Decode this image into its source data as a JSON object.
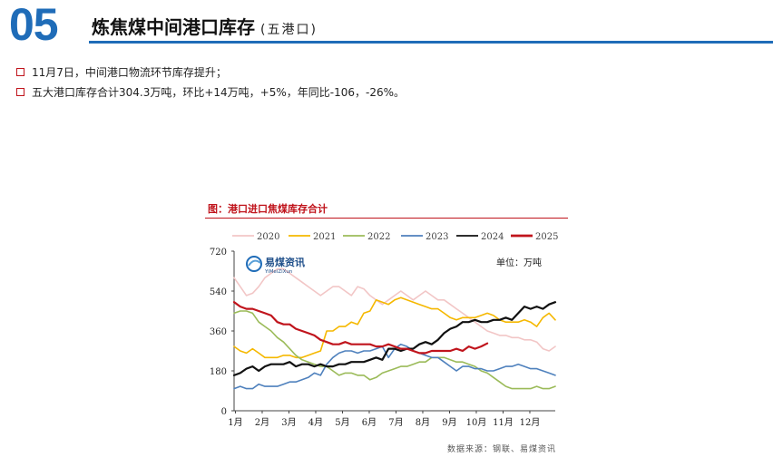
{
  "section": {
    "number": "05"
  },
  "header": {
    "title": "炼焦煤中间港口库存",
    "subtitle": "(五港口)"
  },
  "bullets": [
    {
      "text": "11月7日，中间港口物流环节库存提升；"
    },
    {
      "text": "五大港口库存合计304.3万吨，环比+14万吨，+5%，年同比-106，-26%。"
    }
  ],
  "chart_title": "图：港口进口焦煤库存合计",
  "logo": {
    "name": "易煤资讯",
    "en": "YiMeiZiXun"
  },
  "unit_label": "单位：万吨",
  "source": "数据来源：钢联、易煤资讯",
  "chart_data": {
    "type": "line",
    "ylim": [
      0,
      720
    ],
    "yticks": [
      0,
      180,
      360,
      540,
      720
    ],
    "x_tick_labels": [
      "1月",
      "2月",
      "3月",
      "4月",
      "5月",
      "6月",
      "7月",
      "8月",
      "9月",
      "10月",
      "11月",
      "12月"
    ],
    "x_range_weeks": [
      1,
      53
    ],
    "series": [
      {
        "name": "2020",
        "color": "#f2c6c6",
        "values": [
          600,
          560,
          520,
          530,
          560,
          600,
          620,
          640,
          640,
          620,
          600,
          580,
          560,
          540,
          520,
          540,
          560,
          560,
          540,
          520,
          560,
          550,
          520,
          500,
          480,
          500,
          520,
          540,
          520,
          500,
          520,
          540,
          520,
          500,
          500,
          480,
          460,
          440,
          420,
          400,
          380,
          360,
          350,
          340,
          340,
          330,
          330,
          320,
          320,
          310,
          280,
          270,
          290
        ]
      },
      {
        "name": "2021",
        "color": "#f5b800",
        "values": [
          290,
          270,
          260,
          280,
          260,
          240,
          240,
          240,
          250,
          250,
          240,
          240,
          250,
          260,
          270,
          360,
          360,
          380,
          380,
          400,
          390,
          440,
          450,
          500,
          490,
          480,
          500,
          510,
          500,
          490,
          480,
          470,
          460,
          460,
          440,
          420,
          410,
          420,
          420,
          420,
          430,
          440,
          430,
          410,
          400,
          400,
          400,
          410,
          400,
          380,
          420,
          440,
          410
        ]
      },
      {
        "name": "2022",
        "color": "#9bbb59",
        "values": [
          440,
          450,
          450,
          440,
          400,
          380,
          360,
          330,
          310,
          280,
          250,
          230,
          220,
          210,
          200,
          200,
          180,
          160,
          170,
          170,
          160,
          160,
          140,
          150,
          170,
          180,
          190,
          200,
          200,
          210,
          220,
          220,
          240,
          240,
          240,
          230,
          220,
          220,
          210,
          200,
          180,
          170,
          150,
          130,
          110,
          100,
          100,
          100,
          100,
          110,
          100,
          100,
          110
        ]
      },
      {
        "name": "2023",
        "color": "#4f81bd",
        "values": [
          100,
          110,
          100,
          100,
          120,
          110,
          110,
          110,
          120,
          130,
          130,
          140,
          150,
          170,
          160,
          210,
          240,
          260,
          270,
          270,
          260,
          270,
          270,
          280,
          290,
          240,
          280,
          300,
          290,
          270,
          260,
          250,
          240,
          240,
          220,
          200,
          180,
          200,
          200,
          190,
          190,
          180,
          180,
          190,
          200,
          200,
          210,
          200,
          190,
          190,
          180,
          170,
          160
        ]
      },
      {
        "name": "2024",
        "color": "#111111",
        "values": [
          160,
          170,
          190,
          200,
          180,
          200,
          210,
          210,
          210,
          220,
          200,
          210,
          210,
          200,
          210,
          200,
          200,
          210,
          210,
          220,
          220,
          220,
          230,
          240,
          230,
          280,
          280,
          270,
          280,
          280,
          300,
          310,
          300,
          320,
          350,
          370,
          380,
          400,
          400,
          410,
          400,
          400,
          410,
          410,
          420,
          410,
          440,
          470,
          460,
          470,
          460,
          480,
          490
        ]
      },
      {
        "name": "2025",
        "color": "#c0141c",
        "values": [
          490,
          470,
          460,
          460,
          450,
          440,
          430,
          400,
          390,
          390,
          370,
          360,
          350,
          340,
          320,
          310,
          300,
          300,
          310,
          300,
          300,
          300,
          300,
          290,
          290,
          300,
          290,
          280,
          280,
          270,
          260,
          260,
          270,
          270,
          270,
          270,
          280,
          270,
          290,
          280,
          290,
          304
        ]
      }
    ]
  }
}
